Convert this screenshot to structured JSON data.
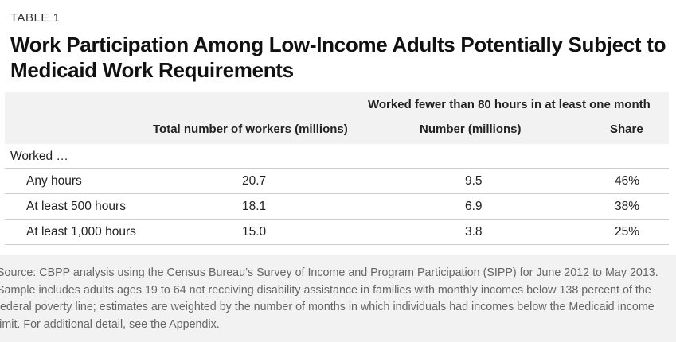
{
  "table_label": "TABLE 1",
  "title": "Work Participation Among Low-Income Adults Potentially Subject to Medicaid Work Requirements",
  "header": {
    "spanning": "Worked fewer than 80 hours in at least one month",
    "col_total": "Total number of workers (millions)",
    "col_number": "Number (millions)",
    "col_share": "Share"
  },
  "group_label": "Worked …",
  "rows": [
    {
      "label": "Any hours",
      "total": "20.7",
      "number": "9.5",
      "share": "46%"
    },
    {
      "label": "At least 500 hours",
      "total": "18.1",
      "number": "6.9",
      "share": "38%"
    },
    {
      "label": "At least 1,000 hours",
      "total": "15.0",
      "number": "3.8",
      "share": "25%"
    }
  ],
  "source": "Source:  CBPP analysis using the Census Bureau’s Survey of Income and Program Participation (SIPP) for June 2012 to May 2013.  Sample includes adults ages 19 to 64 not receiving disability assistance in families with monthly incomes below 138 percent of the federal poverty line; estimates are weighted by the number of months in which individuals had incomes below the Medicaid income limit.  For additional detail, see the Appendix."
}
